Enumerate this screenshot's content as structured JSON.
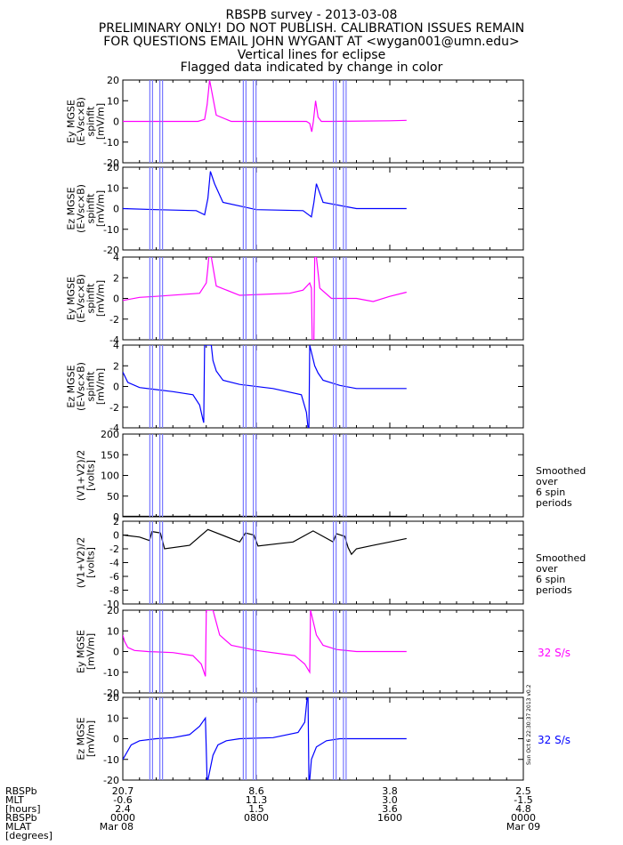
{
  "header": {
    "lines": [
      "RBSPB survey - 2013-03-08",
      "PRELIMINARY ONLY! DO NOT PUBLISH. CALIBRATION ISSUES REMAIN",
      "FOR QUESTIONS EMAIL JOHN WYGANT AT <wygan001@umn.edu>",
      "Vertical lines for eclipse",
      "Flagged data indicated by change in color"
    ]
  },
  "side_stamp": "Sun Oct 6 22:30:37 2013 v0.2",
  "colors": {
    "magenta": "#ff00ff",
    "blue": "#0000ff",
    "black": "#000000",
    "eclipse": "#7777ff"
  },
  "eclipse_times_hours": [
    1.7,
    2.3,
    7.3,
    7.9,
    12.7,
    13.3
  ],
  "chart_data": [
    {
      "type": "line",
      "ylabel": [
        "Ey MGSE",
        "(E-Vsc×B)",
        "spinfit",
        "[mV/m]"
      ],
      "ylim": [
        -20,
        20
      ],
      "yticks": [
        -20,
        -10,
        0,
        10,
        20
      ],
      "color": "#ff00ff",
      "series": {
        "x": [
          0,
          4.5,
          4.9,
          5.05,
          5.2,
          5.6,
          6.5,
          11.0,
          11.2,
          11.32,
          11.42,
          11.55,
          11.7,
          11.9,
          12.5,
          16.0,
          17
        ],
        "y": [
          0,
          0,
          1,
          8,
          20,
          3,
          0,
          0,
          -1,
          -5,
          0,
          10,
          2,
          0,
          0,
          0.3,
          0.5
        ]
      },
      "right_label": ""
    },
    {
      "type": "line",
      "ylabel": [
        "Ez MGSE",
        "(E-Vsc×B)",
        "spinfit",
        "[mV/m]"
      ],
      "ylim": [
        -20,
        20
      ],
      "yticks": [
        -20,
        -10,
        0,
        10,
        20
      ],
      "color": "#0000ff",
      "series": {
        "x": [
          0,
          2,
          4.4,
          4.9,
          5.1,
          5.25,
          5.5,
          6.0,
          8,
          10.8,
          11.3,
          11.45,
          11.6,
          12.0,
          14,
          17
        ],
        "y": [
          0,
          -0.5,
          -1,
          -3,
          5,
          18,
          12,
          3,
          -0.5,
          -1,
          -4,
          3,
          12,
          3,
          0,
          0
        ]
      },
      "right_label": ""
    },
    {
      "type": "line",
      "ylabel": [
        "Ey MGSE",
        "(E-Vsc×B)",
        "spinfit",
        "[mV/m]"
      ],
      "ylim": [
        -4,
        4
      ],
      "yticks": [
        -4,
        -2,
        0,
        2,
        4
      ],
      "color": "#ff00ff",
      "series": {
        "x": [
          0,
          1,
          2,
          4.6,
          5.0,
          5.1,
          5.15,
          5.3,
          5.6,
          7,
          10,
          10.8,
          11.2,
          11.3,
          11.35,
          11.45,
          11.5,
          11.6,
          11.8,
          12.5,
          14,
          15,
          16,
          17
        ],
        "y": [
          -0.2,
          0.1,
          0.2,
          0.5,
          1.5,
          3,
          4,
          4,
          1.2,
          0.3,
          0.5,
          0.8,
          1.5,
          1.0,
          -4,
          -4,
          4,
          4,
          1,
          0,
          0,
          -0.3,
          0.2,
          0.6
        ]
      },
      "right_label": ""
    },
    {
      "type": "line",
      "ylabel": [
        "Ez MGSE",
        "(E-Vsc×B)",
        "spinfit",
        "[mV/m]"
      ],
      "ylim": [
        -4,
        4
      ],
      "yticks": [
        -4,
        -2,
        0,
        2,
        4
      ],
      "color": "#0000ff",
      "series": {
        "x": [
          0,
          0.3,
          1,
          2,
          3,
          4.2,
          4.6,
          4.8,
          4.85,
          4.9,
          5.3,
          5.4,
          5.6,
          6,
          7,
          9,
          10.7,
          11.0,
          11.1,
          11.15,
          11.2,
          11.5,
          11.7,
          12,
          13,
          14,
          15,
          16,
          17
        ],
        "y": [
          1.4,
          0.4,
          -0.1,
          -0.3,
          -0.5,
          -0.8,
          -1.8,
          -3.2,
          -3.5,
          4,
          4,
          2.5,
          1.5,
          0.6,
          0.2,
          -0.2,
          -0.8,
          -2.5,
          -4,
          -4,
          4,
          2,
          1.3,
          0.6,
          0.1,
          -0.2,
          -0.2,
          -0.2,
          -0.2
        ]
      },
      "right_label": ""
    },
    {
      "type": "line",
      "ylabel": [
        "(V1+V2)/2",
        "[volts]"
      ],
      "ylim": [
        0,
        200
      ],
      "yticks": [
        0,
        50,
        100,
        150,
        200
      ],
      "color": "#000000",
      "series": {
        "x": [
          0,
          17
        ],
        "y": [
          1,
          1
        ]
      },
      "right_label": [
        "Smoothed",
        "over",
        "6 spin",
        "periods"
      ]
    },
    {
      "type": "line",
      "ylabel": [
        "(V1+V2)/2",
        "[volts]"
      ],
      "ylim": [
        -10,
        2
      ],
      "yticks": [
        -10,
        -8,
        -6,
        -4,
        -2,
        0,
        2
      ],
      "color": "#000000",
      "series": {
        "x": [
          0,
          1,
          1.6,
          1.75,
          2.25,
          2.5,
          4,
          5.1,
          7.0,
          7.35,
          7.85,
          8.1,
          9.5,
          10.2,
          11.4,
          12.6,
          12.8,
          13.3,
          13.5,
          13.7,
          14.0,
          15,
          16,
          17
        ],
        "y": [
          0,
          -0.3,
          -0.8,
          0.5,
          0.3,
          -2,
          -1.5,
          0.8,
          -1,
          0.3,
          0,
          -1.6,
          -1.2,
          -1,
          0.6,
          -1,
          0.2,
          -0.2,
          -1.8,
          -2.8,
          -2,
          -1.5,
          -1,
          -0.5
        ]
      },
      "right_label": [
        "Smoothed",
        "over",
        "6 spin",
        "periods"
      ]
    },
    {
      "type": "line",
      "ylabel": [
        "Ey MGSE",
        "[mV/m]"
      ],
      "ylim": [
        -20,
        20
      ],
      "yticks": [
        -20,
        -10,
        0,
        10,
        20
      ],
      "color": "#ff00ff",
      "series": {
        "x": [
          0,
          0.1,
          0.3,
          0.7,
          1.5,
          3,
          4.2,
          4.7,
          4.95,
          5.0,
          5.4,
          5.8,
          6.5,
          8,
          10.3,
          10.9,
          11.2,
          11.25,
          11.6,
          12,
          12.8,
          14,
          17
        ],
        "y": [
          8,
          5,
          2,
          0.5,
          0,
          -0.5,
          -2,
          -6,
          -12,
          20,
          20,
          8,
          3,
          0.5,
          -2,
          -6,
          -10,
          20,
          8,
          3,
          1,
          0,
          0
        ]
      },
      "right_label": "32 S/s"
    },
    {
      "type": "line",
      "ylabel": [
        "Ez MGSE",
        "[mV/m]"
      ],
      "ylim": [
        -20,
        20
      ],
      "yticks": [
        -20,
        -10,
        0,
        10,
        20
      ],
      "color": "#0000ff",
      "series": {
        "x": [
          0,
          0.5,
          1,
          2,
          3,
          4,
          4.6,
          4.95,
          5.05,
          5.1,
          5.4,
          5.7,
          6.2,
          7,
          9,
          10.5,
          10.9,
          11.05,
          11.1,
          11.15,
          11.2,
          11.3,
          11.6,
          12.2,
          13,
          17
        ],
        "y": [
          -10,
          -3,
          -1,
          0,
          0.5,
          2,
          6,
          10,
          -20,
          -20,
          -8,
          -3,
          -1,
          0,
          0.5,
          3,
          8,
          20,
          20,
          -20,
          -20,
          -10,
          -4,
          -1,
          0,
          0
        ]
      },
      "right_label": "32 S/s"
    }
  ],
  "xaxis": {
    "rows": [
      "RBSPb",
      "MLT",
      "[hours]",
      "RBSPb",
      "MLAT",
      "[degrees]"
    ],
    "ticks": [
      {
        "t": 0,
        "vals": [
          "20.7",
          "-0.6",
          "2.4",
          "0000",
          "Mar 08"
        ]
      },
      {
        "t": 8,
        "vals": [
          "8.6",
          "11.3",
          "1.5",
          "0800",
          ""
        ]
      },
      {
        "t": 16,
        "vals": [
          "3.8",
          "3.0",
          "3.6",
          "1600",
          ""
        ]
      },
      {
        "t": 24,
        "vals": [
          "2.5",
          "-1.5",
          "4.8",
          "0000",
          "Mar 09"
        ]
      }
    ]
  }
}
